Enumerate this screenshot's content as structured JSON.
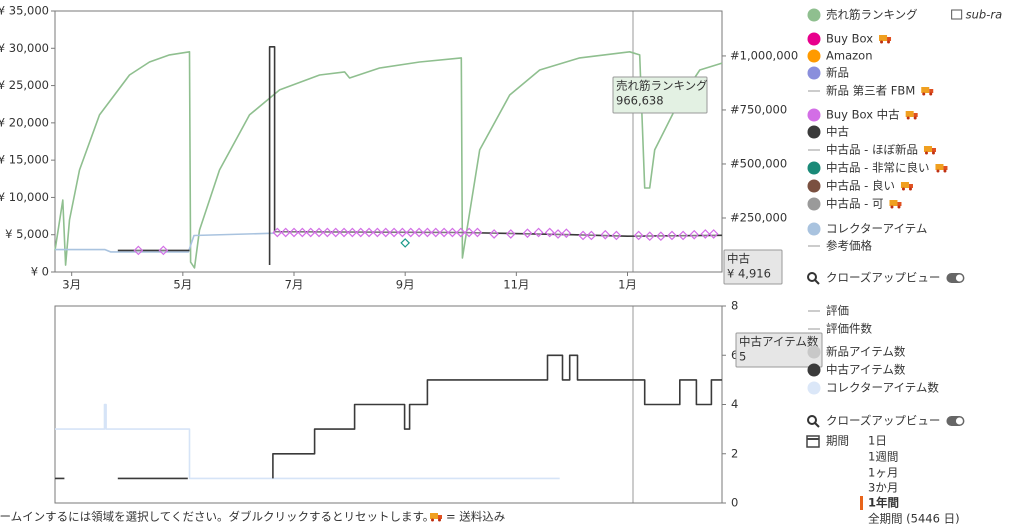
{
  "chart_data": [
    {
      "type": "line",
      "xlim": [
        2.7,
        14.7
      ],
      "xticks": [
        {
          "value": 3,
          "label": "3月"
        },
        {
          "value": 5,
          "label": "5月"
        },
        {
          "value": 7,
          "label": "7月"
        },
        {
          "value": 9,
          "label": "9月"
        },
        {
          "value": 11,
          "label": "11月"
        },
        {
          "value": 13,
          "label": "1月"
        }
      ],
      "ylim": [
        0,
        35000
      ],
      "yticks": [
        {
          "value": 0,
          "label": "¥ 0"
        },
        {
          "value": 5000,
          "label": "¥ 5,000"
        },
        {
          "value": 10000,
          "label": "¥ 10,000"
        },
        {
          "value": 15000,
          "label": "¥ 15,000"
        },
        {
          "value": 20000,
          "label": "¥ 20,000"
        },
        {
          "value": 25000,
          "label": "¥ 25,000"
        },
        {
          "value": 30000,
          "label": "¥ 30,000"
        },
        {
          "value": 35000,
          "label": "¥ 35,000"
        }
      ],
      "y2lim": [
        0,
        1208000
      ],
      "y2ticks": [
        {
          "value": 250000,
          "label": "#250,000"
        },
        {
          "value": 500000,
          "label": "#500,000"
        },
        {
          "value": 750000,
          "label": "#750,000"
        },
        {
          "value": 1000000,
          "label": "#1,000,000"
        }
      ],
      "series": [
        {
          "color": "#8fbf8f",
          "axis": "y2",
          "x": [
            2.7,
            2.84,
            2.89,
            2.96,
            3.14,
            3.5,
            4.04,
            4.4,
            4.76,
            5.12,
            5.14,
            5.21,
            5.3,
            5.66,
            6.2,
            6.74,
            7.46,
            7.91,
            8.0,
            8.54,
            9.26,
            10.01,
            10.03,
            10.34,
            10.88,
            11.42,
            12.14,
            13.04,
            13.22,
            13.31,
            13.4,
            13.49,
            13.76,
            13.94,
            14.3,
            14.7
          ],
          "values": [
            100000,
            333000,
            32000,
            241000,
            472000,
            727000,
            912000,
            972000,
            1005000,
            1019000,
            46000,
            19000,
            194000,
            472000,
            727000,
            843000,
            912000,
            926000,
            898000,
            944000,
            972000,
            991000,
            65000,
            565000,
            819000,
            935000,
            991000,
            1019000,
            1005000,
            389000,
            389000,
            565000,
            704000,
            796000,
            935000,
            966638
          ]
        },
        {
          "color": "#a9c3df",
          "x": [
            2.7,
            3.6,
            3.7,
            5.1,
            5.2,
            6.65
          ],
          "values": [
            3000,
            3000,
            2700,
            2700,
            4900,
            5200
          ]
        },
        {
          "color": "#3a3a3a",
          "x": [
            3.83,
            5.12,
            null,
            6.56,
            6.56,
            6.65,
            6.65,
            10.0,
            12.0,
            13.0,
            14.7
          ],
          "values": [
            2900,
            2900,
            null,
            940,
            30200,
            30200,
            5400,
            5300,
            5000,
            4800,
            4916
          ]
        },
        {
          "color": "#d36ee6",
          "marker": "diamond",
          "x": [
            4.2,
            4.65,
            6.7,
            6.85,
            7.0,
            7.15,
            7.3,
            7.45,
            7.6,
            7.75,
            7.9,
            8.05,
            8.2,
            8.35,
            8.5,
            8.65,
            8.8,
            8.95,
            9.1,
            9.25,
            9.4,
            9.55,
            9.7,
            9.85,
            10.0,
            10.15,
            10.3,
            10.6,
            10.9,
            11.2,
            11.4,
            11.6,
            11.75,
            11.9,
            12.2,
            12.35,
            12.6,
            12.8,
            13.2,
            13.4,
            13.6,
            13.8,
            14.0,
            14.2,
            14.4,
            14.55
          ],
          "values": [
            2900,
            2900,
            5300,
            5300,
            5300,
            5300,
            5300,
            5300,
            5300,
            5300,
            5300,
            5300,
            5300,
            5300,
            5300,
            5300,
            5300,
            5300,
            5300,
            5300,
            5300,
            5300,
            5300,
            5300,
            5300,
            5300,
            5300,
            5100,
            5100,
            5200,
            5300,
            5300,
            5100,
            5200,
            4900,
            4900,
            5000,
            4900,
            4900,
            4800,
            4800,
            4900,
            4900,
            5000,
            5100,
            5100
          ]
        },
        {
          "color": "#1a9a8a",
          "marker": "diamond",
          "x": [
            9.0
          ],
          "values": [
            3900
          ]
        }
      ],
      "annotations": [
        {
          "title": "売れ筋ランキング",
          "text": "966,638",
          "color": "#e3f1e3"
        },
        {
          "title": "中古",
          "text": "¥ 4,916",
          "color": "#e6e6e6"
        }
      ]
    },
    {
      "type": "line",
      "xlim": [
        2.7,
        14.7
      ],
      "ylim": [
        0,
        8
      ],
      "yticks": [
        0,
        2,
        4,
        6,
        8
      ],
      "yaxis_position": "right",
      "series": [
        {
          "color": "#d6e4f7",
          "x": [
            2.7,
            3.59,
            3.59,
            3.62,
            3.62,
            5.12,
            5.12,
            11.78
          ],
          "values": [
            3,
            3,
            4,
            4,
            3,
            3,
            1,
            1
          ]
        },
        {
          "color": "#3a3a3a",
          "x": [
            2.7,
            2.87,
            null,
            3.83,
            5.09,
            null,
            6.62,
            6.62,
            7.37,
            7.37,
            8.09,
            8.09,
            8.99,
            8.99,
            9.08,
            9.08,
            9.4,
            9.4,
            11.56,
            11.56,
            11.83,
            11.83,
            11.96,
            11.96,
            12.1,
            12.1,
            13.31,
            13.31,
            13.94,
            13.94,
            14.24,
            14.24,
            14.51,
            14.51,
            14.7
          ],
          "values": [
            1,
            1,
            null,
            1,
            1,
            null,
            1,
            2,
            2,
            3,
            3,
            4,
            4,
            3,
            3,
            4,
            4,
            5,
            5,
            6,
            6,
            5,
            5,
            6,
            6,
            5,
            5,
            4,
            4,
            5,
            5,
            4,
            4,
            5,
            5
          ]
        }
      ],
      "annotations": [
        {
          "title": "中古アイテム数",
          "text": "5",
          "color": "#e6e6e6"
        }
      ]
    }
  ],
  "legend": {
    "items": [
      {
        "name": "売れ筋ランキング",
        "marker": "dot",
        "color": "#8fbf8f",
        "extra": "sub-ra"
      },
      {
        "name": "Buy Box",
        "marker": "dot",
        "color": "#e8008c",
        "truck": true
      },
      {
        "name": "Amazon",
        "marker": "dot",
        "color": "#ff9a00"
      },
      {
        "name": "新品",
        "marker": "dot",
        "color": "#8a8fdc"
      },
      {
        "name": "新品 第三者 FBM",
        "marker": "line",
        "color": "#999999",
        "truck": true
      },
      {
        "name": "Buy Box 中古",
        "marker": "dot",
        "color": "#d36ee6",
        "truck": true
      },
      {
        "name": "中古",
        "marker": "dot",
        "color": "#3a3a3a"
      },
      {
        "name": "中古品 - ほぼ新品",
        "marker": "line",
        "color": "#999999",
        "truck": true
      },
      {
        "name": "中古品 - 非常に良い",
        "marker": "dot",
        "color": "#1a8a78",
        "truck": true
      },
      {
        "name": "中古品 - 良い",
        "marker": "dot",
        "color": "#7a5040",
        "truck": true
      },
      {
        "name": "中古品 - 可",
        "marker": "dot",
        "color": "#9a9a9a",
        "truck": true
      },
      {
        "name": "コレクターアイテム",
        "marker": "dot",
        "color": "#a9c3df"
      },
      {
        "name": "参考価格",
        "marker": "line",
        "color": "#999999"
      }
    ],
    "closeup": "クローズアップビュー",
    "items2": [
      {
        "name": "評価",
        "marker": "line",
        "color": "#999999"
      },
      {
        "name": "評価件数",
        "marker": "line",
        "color": "#999999"
      },
      {
        "name": "新品アイテム数",
        "marker": "dot",
        "color": "#c8c8c8"
      },
      {
        "name": "中古アイテム数",
        "marker": "dot",
        "color": "#3a3a3a"
      },
      {
        "name": "コレクターアイテム数",
        "marker": "dot",
        "color": "#dbe7f8"
      }
    ],
    "closeup2": "クローズアップビュー",
    "period_label": "期間",
    "periods": [
      "1日",
      "1週間",
      "1ヶ月",
      "3か月",
      "1年間",
      "全期間 (5446 日)"
    ],
    "selected_period": 4
  },
  "footer": {
    "hint": "ズームインするには領域を選択してください。ダブルクリックするとリセットします。",
    "shipping": "= 送料込み"
  }
}
